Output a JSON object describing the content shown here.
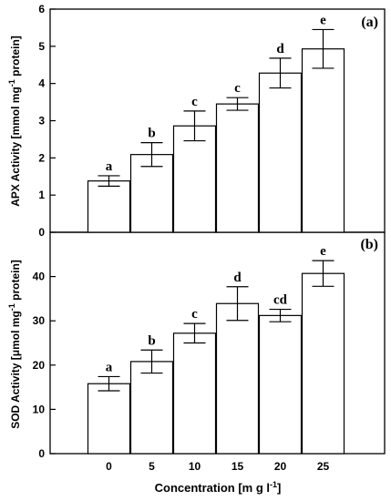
{
  "chart_data": [
    {
      "type": "bar",
      "panel_label": "(a)",
      "categories": [
        "0",
        "5",
        "10",
        "15",
        "20",
        "25"
      ],
      "values": [
        1.38,
        2.09,
        2.86,
        3.45,
        4.28,
        4.93
      ],
      "errors": [
        0.14,
        0.32,
        0.4,
        0.17,
        0.4,
        0.52
      ],
      "significance": [
        "a",
        "b",
        "c",
        "c",
        "d",
        "e"
      ],
      "ylabel_main": "APX Activity [mmol mg",
      "ylabel_sup": "-1",
      "ylabel_tail": " protein]",
      "ylim": [
        0,
        6
      ],
      "yticks": [
        "0",
        "1",
        "2",
        "3",
        "4",
        "5",
        "6"
      ]
    },
    {
      "type": "bar",
      "panel_label": "(b)",
      "categories": [
        "0",
        "5",
        "10",
        "15",
        "20",
        "25"
      ],
      "values": [
        15.8,
        20.8,
        27.2,
        33.9,
        31.2,
        40.7
      ],
      "errors": [
        1.6,
        2.6,
        2.2,
        3.8,
        1.4,
        2.9
      ],
      "significance": [
        "a",
        "b",
        "c",
        "d",
        "cd",
        "e"
      ],
      "ylabel_main": "SOD Activity [μmol mg",
      "ylabel_sup": "-1",
      "ylabel_tail": " protein]",
      "ylim": [
        0,
        50
      ],
      "yticks": [
        "0",
        "10",
        "20",
        "30",
        "40"
      ]
    }
  ],
  "xaxis": {
    "tick_labels": [
      "0",
      "5",
      "10",
      "15",
      "20",
      "25"
    ],
    "label_main": "Concentration [m g l",
    "label_sup": "-1",
    "label_tail": "]"
  }
}
